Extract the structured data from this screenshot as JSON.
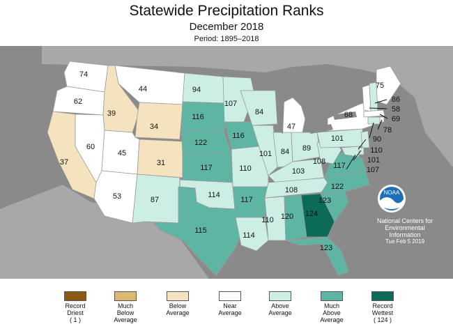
{
  "header": {
    "title": "Statewide Precipitation Ranks",
    "subtitle": "December 2018",
    "period": "Period: 1895–2018"
  },
  "colors": {
    "record_driest": "#8b5a14",
    "much_below": "#dcb873",
    "below": "#f5e3bf",
    "near": "#ffffff",
    "above": "#cdeee4",
    "much_above": "#5fb5a3",
    "record_wettest": "#0b6a58",
    "background": "#8a8a8a",
    "ocean_water": "#8a8a8a",
    "great_lakes": "#8a8a8a"
  },
  "ranks": {
    "WA": "74",
    "OR": "62",
    "CA": "37",
    "ID": "39",
    "NV": "60",
    "MT": "44",
    "WY": "34",
    "UT": "45",
    "AZ": "53",
    "CO": "31",
    "NM": "87",
    "ND": "94",
    "SD": "116",
    "NE": "122",
    "KS": "117",
    "OK": "114",
    "TX": "115",
    "MN": "107",
    "IA": "116",
    "MO": "110",
    "AR": "117",
    "LA": "114",
    "WI": "84",
    "IL": "101",
    "MI": "47",
    "IN": "84",
    "OH": "89",
    "KY": "103",
    "TN": "108",
    "MS": "110",
    "AL": "120",
    "GA": "124",
    "FL": "123",
    "SC": "123",
    "NC": "122",
    "VA": "117",
    "WV": "108",
    "PA": "101",
    "NY": "68",
    "ME": "75",
    "NH": "86",
    "VT": "58",
    "MA": "69",
    "RI": "78",
    "CT": "90",
    "NJ": "110",
    "DE": "101",
    "MD": "107"
  },
  "legend": [
    {
      "label": "Record\nDriest\n( 1 )",
      "color": "#8b5a14"
    },
    {
      "label": "Much\nBelow\nAverage",
      "color": "#dcb873"
    },
    {
      "label": "Below\nAverage",
      "color": "#f5e3bf"
    },
    {
      "label": "Near\nAverage",
      "color": "#ffffff"
    },
    {
      "label": "Above\nAverage",
      "color": "#cdeee4"
    },
    {
      "label": "Much\nAbove\nAverage",
      "color": "#5fb5a3"
    },
    {
      "label": "Record\nWettest\n( 124 )",
      "color": "#0b6a58"
    }
  ],
  "credit": {
    "logo_text": "NOAA",
    "line1": "National Centers for",
    "line2": "Environmental",
    "line3": "Information",
    "date": "Tue Feb  5 2019"
  }
}
